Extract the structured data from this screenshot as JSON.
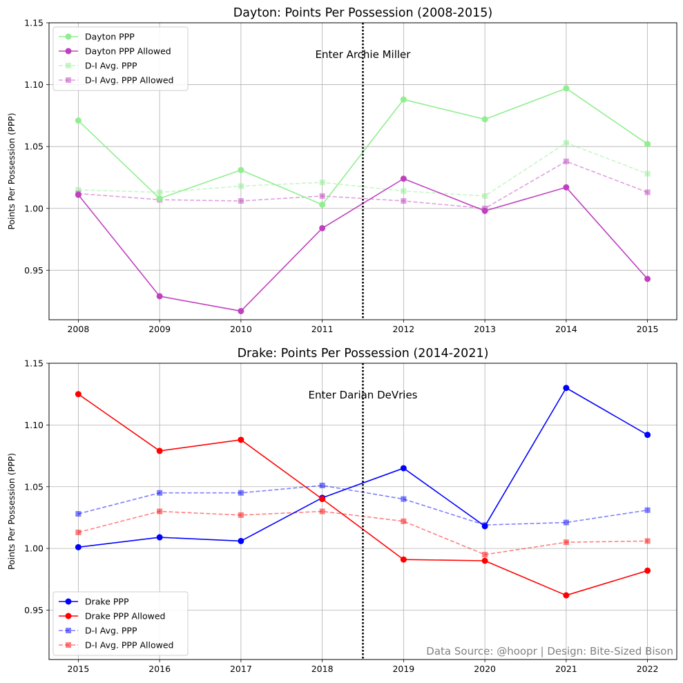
{
  "colors": {
    "dayton_ppp": "#90ee90",
    "dayton_allowed": "#bf40bf",
    "drake_ppp": "#0000ff",
    "drake_allowed": "#ff0000",
    "grid": "#b0b0b0",
    "credit": "#808080"
  },
  "credit": "Data Source: @hoopr | Design: Bite-Sized Bison",
  "chart_data": [
    {
      "type": "line",
      "title": "Dayton: Points Per Possession (2008-2015)",
      "xlabel": "",
      "ylabel": "Points Per Possession (PPP)",
      "x": [
        "2008",
        "2009",
        "2010",
        "2011",
        "2012",
        "2013",
        "2014",
        "2015"
      ],
      "ylim": [
        0.91,
        1.15
      ],
      "yticks": [
        "0.95",
        "1.00",
        "1.05",
        "1.10",
        "1.15"
      ],
      "grid": true,
      "legend_loc": "upper-left",
      "vline": {
        "x": 3.5,
        "label": "Enter Archie Miller"
      },
      "series": [
        {
          "name": "Dayton PPP",
          "color": "#90ee90",
          "style": "solid",
          "marker": "circle",
          "alpha": 1,
          "values": [
            1.071,
            1.008,
            1.031,
            1.003,
            1.088,
            1.072,
            1.097,
            1.052
          ]
        },
        {
          "name": "Dayton PPP Allowed",
          "color": "#bf40bf",
          "style": "solid",
          "marker": "circle",
          "alpha": 1,
          "values": [
            1.011,
            0.929,
            0.917,
            0.984,
            1.024,
            0.998,
            1.017,
            0.943
          ]
        },
        {
          "name": "D-I Avg. PPP",
          "color": "#90ee90",
          "style": "dashed",
          "marker": "square",
          "alpha": 0.5,
          "values": [
            1.015,
            1.013,
            1.018,
            1.021,
            1.014,
            1.01,
            1.053,
            1.028
          ]
        },
        {
          "name": "D-I Avg. PPP Allowed",
          "color": "#bf40bf",
          "style": "dashed",
          "marker": "square",
          "alpha": 0.5,
          "values": [
            1.012,
            1.007,
            1.006,
            1.01,
            1.006,
            1.0,
            1.038,
            1.013
          ]
        }
      ]
    },
    {
      "type": "line",
      "title": "Drake: Points Per Possession (2014-2021)",
      "xlabel": "",
      "ylabel": "Points Per Possession (PPP)",
      "x": [
        "2015",
        "2016",
        "2017",
        "2018",
        "2019",
        "2020",
        "2021",
        "2022"
      ],
      "ylim": [
        0.91,
        1.15
      ],
      "yticks": [
        "0.95",
        "1.00",
        "1.05",
        "1.10",
        "1.15"
      ],
      "grid": true,
      "legend_loc": "lower-left",
      "vline": {
        "x": 3.5,
        "label": "Enter Darian DeVries"
      },
      "series": [
        {
          "name": "Drake PPP",
          "color": "#0000ff",
          "style": "solid",
          "marker": "circle",
          "alpha": 1,
          "values": [
            1.001,
            1.009,
            1.006,
            1.041,
            1.065,
            1.018,
            1.13,
            1.092
          ]
        },
        {
          "name": "Drake PPP Allowed",
          "color": "#ff0000",
          "style": "solid",
          "marker": "circle",
          "alpha": 1,
          "values": [
            1.125,
            1.079,
            1.088,
            1.04,
            0.991,
            0.99,
            0.962,
            0.982
          ]
        },
        {
          "name": "D-I Avg. PPP",
          "color": "#0000ff",
          "style": "dashed",
          "marker": "square",
          "alpha": 0.5,
          "values": [
            1.028,
            1.045,
            1.045,
            1.051,
            1.04,
            1.019,
            1.021,
            1.031
          ]
        },
        {
          "name": "D-I Avg. PPP Allowed",
          "color": "#ff0000",
          "style": "dashed",
          "marker": "square",
          "alpha": 0.5,
          "values": [
            1.013,
            1.03,
            1.027,
            1.03,
            1.022,
            0.995,
            1.005,
            1.006
          ]
        }
      ]
    }
  ]
}
